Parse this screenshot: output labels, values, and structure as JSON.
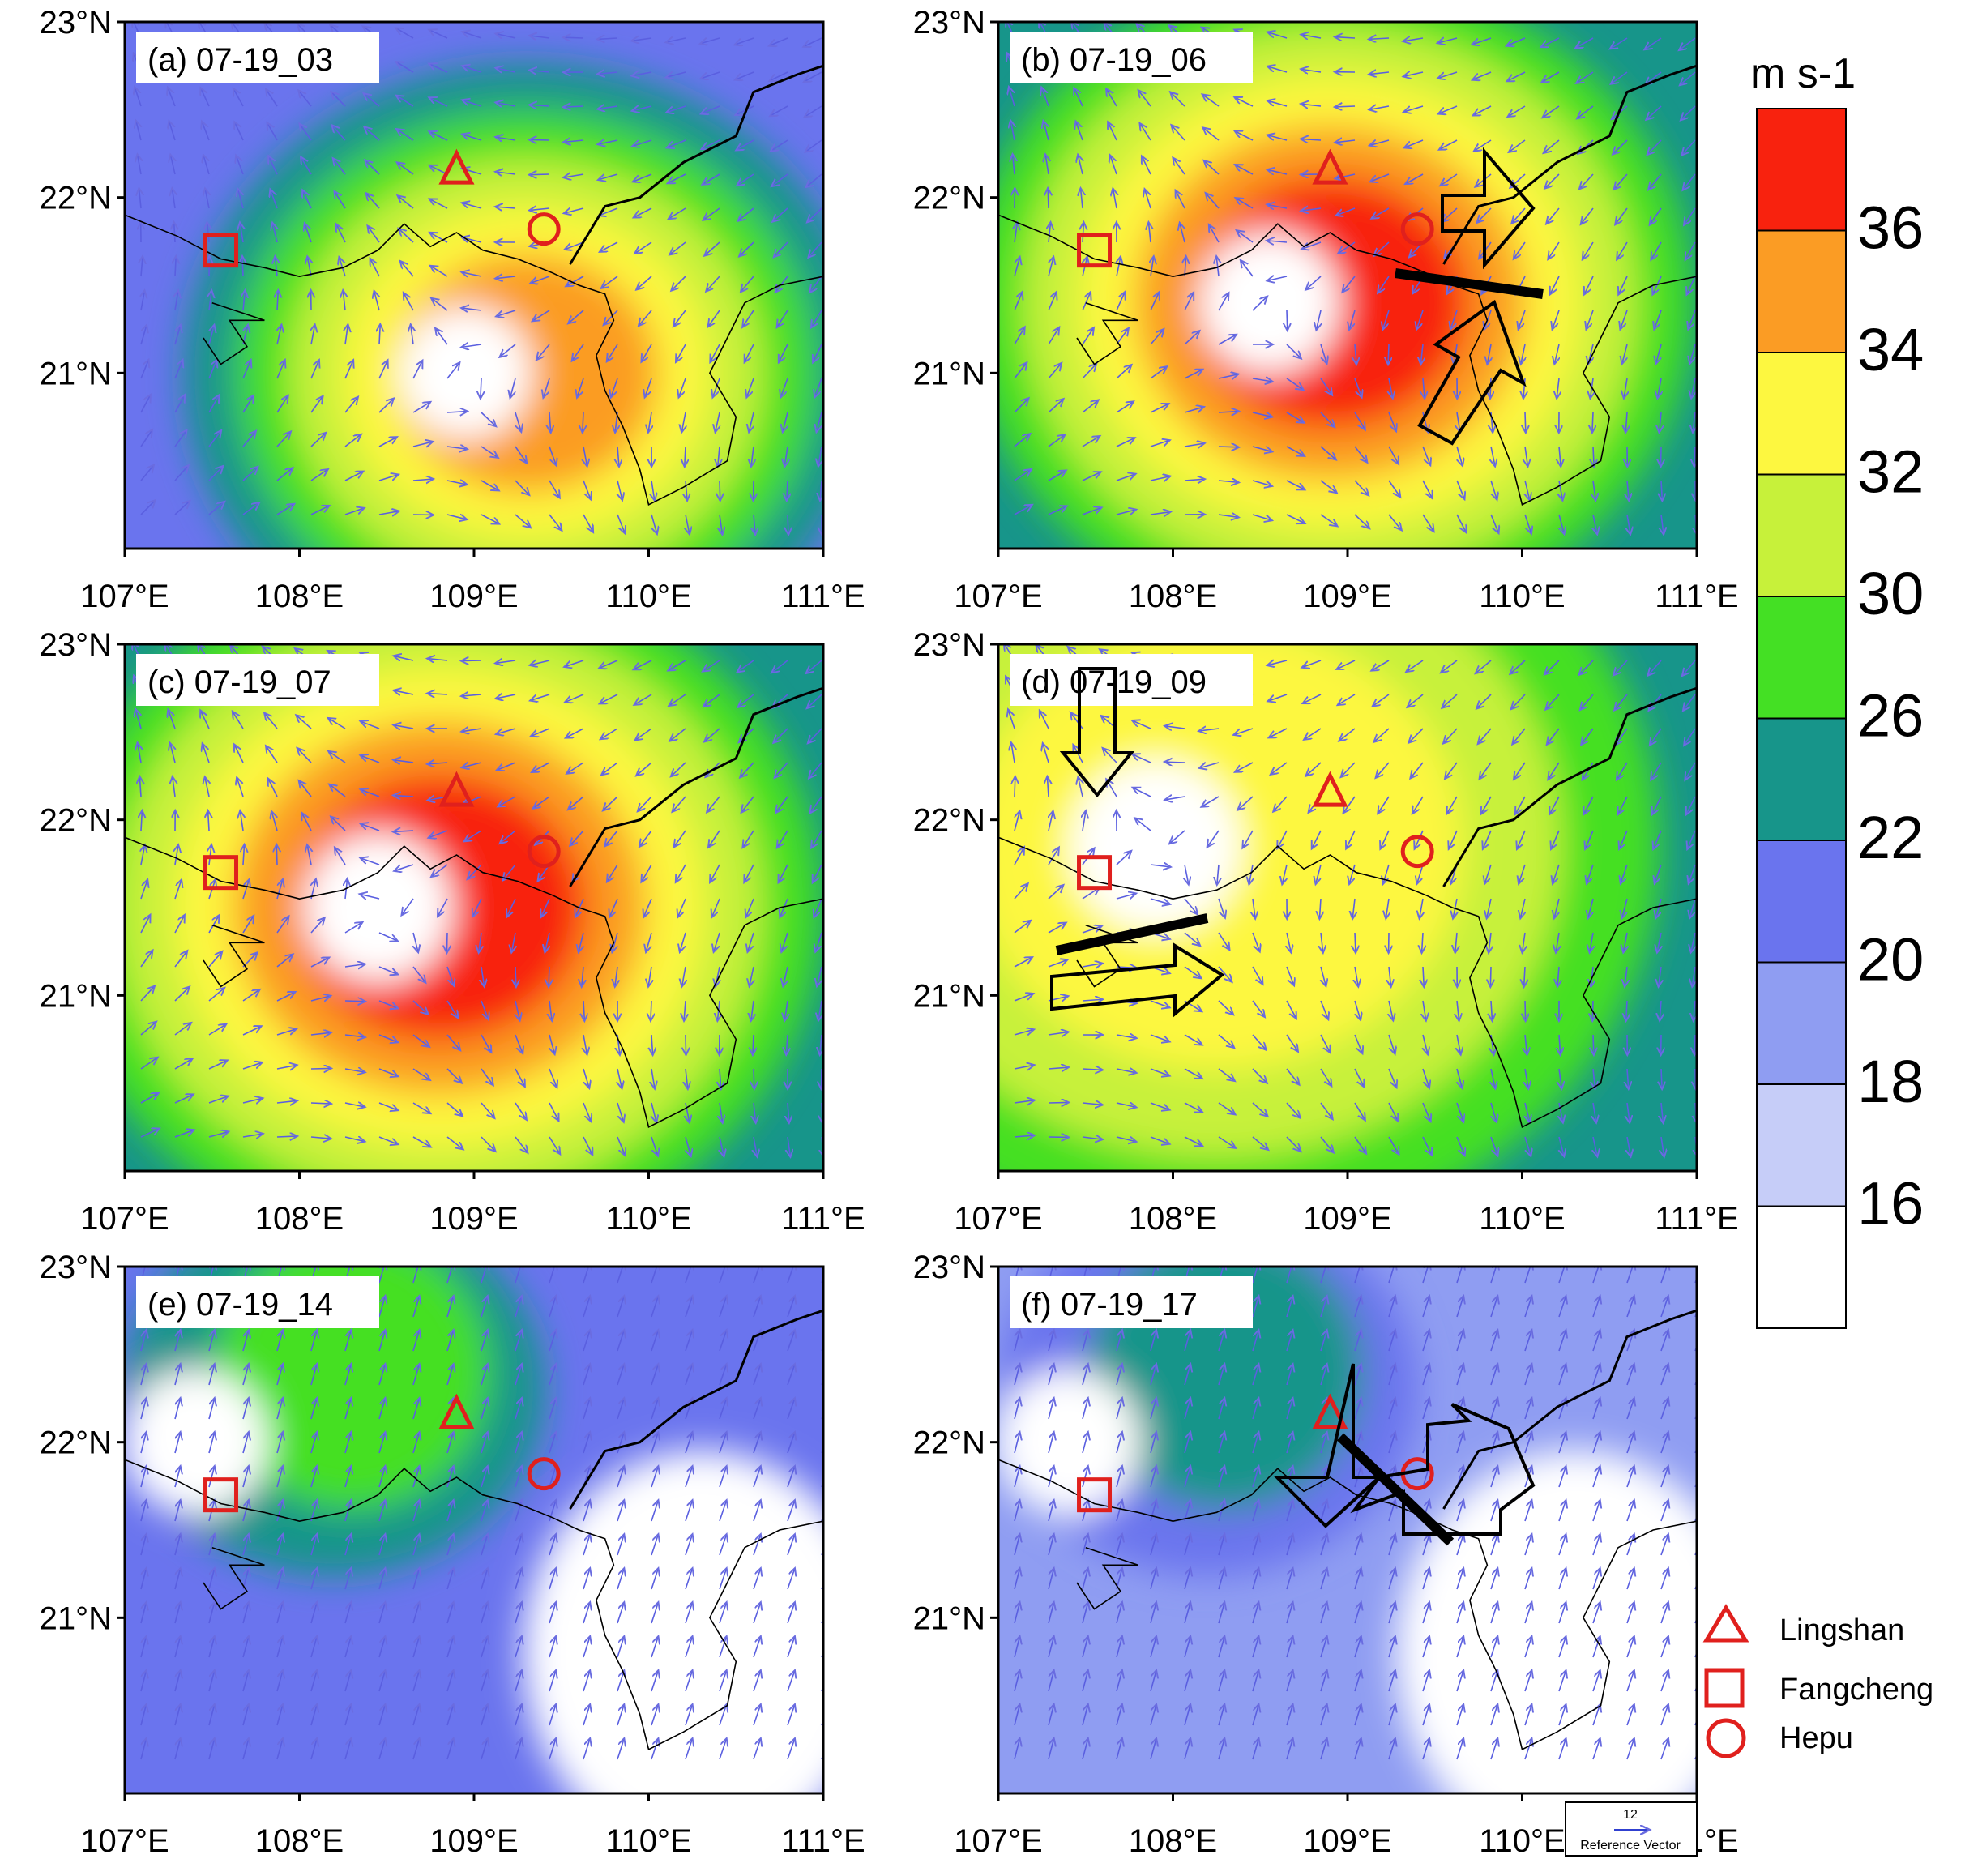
{
  "figure": {
    "panels": [
      {
        "id": "a",
        "title": "(a) 07-19_03",
        "fields": "a"
      },
      {
        "id": "b",
        "title": "(b) 07-19_06",
        "fields": "b"
      },
      {
        "id": "c",
        "title": "(c) 07-19_07",
        "fields": "c"
      },
      {
        "id": "d",
        "title": "(d) 07-19_09",
        "fields": "d"
      },
      {
        "id": "e",
        "title": "(e) 07-19_14",
        "fields": "e"
      },
      {
        "id": "f",
        "title": "(f) 07-19_17",
        "fields": "f"
      }
    ],
    "lon_ticks": [
      "107°E",
      "108°E",
      "109°E",
      "110°E",
      "111°E"
    ],
    "lat_ticks": [
      "23°N",
      "22°N",
      "21°N"
    ],
    "colorbar": {
      "unit": "m s-1",
      "levels": [
        "16",
        "18",
        "20",
        "22",
        "26",
        "30",
        "32",
        "34",
        "36"
      ],
      "colors": [
        "#ffffff",
        "#c6cdf8",
        "#8f9df2",
        "#6a74ee",
        "#17958a",
        "#44e024",
        "#c7f13a",
        "#fdf740",
        "#fb9c24",
        "#f8220e"
      ]
    },
    "stations": [
      {
        "name": "Lingshan",
        "marker": "triangle",
        "lon": 108.9,
        "lat": 22.15
      },
      {
        "name": "Fangcheng",
        "marker": "square",
        "lon": 107.55,
        "lat": 21.7
      },
      {
        "name": "Hepu",
        "marker": "circle",
        "lon": 109.4,
        "lat": 21.82
      }
    ],
    "marker_color": "#e0201d",
    "reference_vector": {
      "value": "12",
      "label": "Reference Vector"
    }
  }
}
